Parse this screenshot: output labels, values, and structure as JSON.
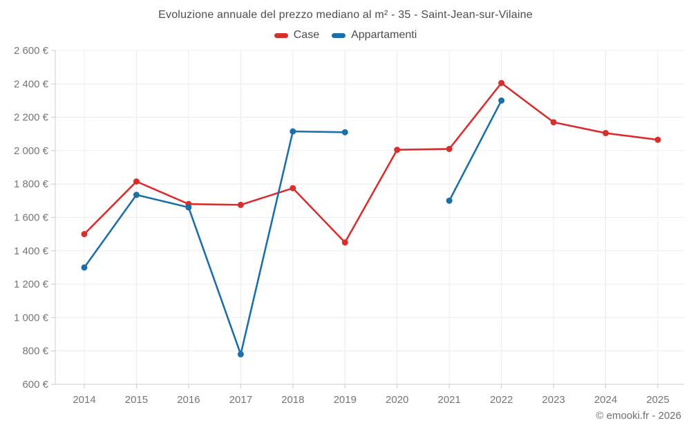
{
  "page": {
    "title": "Evoluzione annuale del prezzo mediano al m² - 35 - Saint-Jean-sur-Vilaine",
    "footer": "© emooki.fr - 2026"
  },
  "legend": {
    "items": [
      {
        "label": "Case",
        "color": "#d82e2e"
      },
      {
        "label": "Appartamenti",
        "color": "#1b6fa8"
      }
    ]
  },
  "chart_data": {
    "type": "line",
    "title": "Evoluzione annuale del prezzo mediano al m² - 35 - Saint-Jean-sur-Vilaine",
    "xlabel": "",
    "ylabel": "",
    "categories": [
      "2014",
      "2015",
      "2016",
      "2017",
      "2018",
      "2019",
      "2020",
      "2021",
      "2022",
      "2023",
      "2024",
      "2025"
    ],
    "series": [
      {
        "name": "Case",
        "color": "#d82e2e",
        "values": [
          1500,
          1815,
          1680,
          1675,
          1775,
          1450,
          2005,
          2010,
          2405,
          2170,
          2105,
          2065
        ]
      },
      {
        "name": "Appartamenti",
        "color": "#1b6fa8",
        "values": [
          1300,
          1735,
          1660,
          780,
          2115,
          2110,
          null,
          1700,
          2300,
          null,
          null,
          null
        ]
      }
    ],
    "ylim": [
      600,
      2600
    ],
    "y_tick_step": 200,
    "y_ticks": {
      "values": [
        600,
        800,
        1000,
        1200,
        1400,
        1600,
        1800,
        2000,
        2200,
        2400,
        2600
      ],
      "labels": [
        "600 €",
        "800 €",
        "1 000 €",
        "1 200 €",
        "1 400 €",
        "1 600 €",
        "1 800 €",
        "2 000 €",
        "2 200 €",
        "2 400 €",
        "2 600 €"
      ]
    },
    "grid": true,
    "legend_position": "top",
    "currency_unit": "€"
  }
}
